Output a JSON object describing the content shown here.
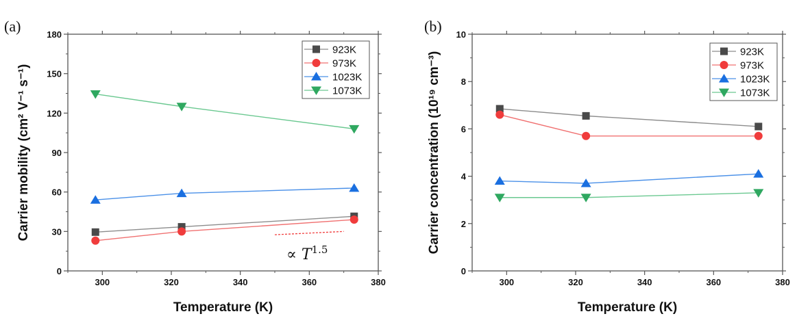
{
  "chart_data": [
    {
      "type": "line",
      "panel_label": "(a)",
      "title": "",
      "xlabel": "Temperature (K)",
      "ylabel": "Carrier mobility (cm² V⁻¹ s⁻¹)",
      "xlim": [
        290,
        380
      ],
      "ylim": [
        0,
        180
      ],
      "xticks": [
        300,
        320,
        340,
        360,
        380
      ],
      "yticks": [
        0,
        30,
        60,
        90,
        120,
        150,
        180
      ],
      "x": [
        298,
        323,
        373
      ],
      "legend_position": "top-right",
      "series": [
        {
          "name": "923K",
          "marker": "square",
          "color": "#4a4a4a",
          "line_color": "#8c8c8c",
          "values": [
            29.5,
            33.5,
            41.5
          ]
        },
        {
          "name": "973K",
          "marker": "circle",
          "color": "#f03c3c",
          "line_color": "#f07070",
          "values": [
            23,
            30,
            39
          ]
        },
        {
          "name": "1023K",
          "marker": "triangle-up",
          "color": "#1a6fe0",
          "line_color": "#4a90e8",
          "values": [
            54,
            59,
            63
          ]
        },
        {
          "name": "1073K",
          "marker": "triangle-down",
          "color": "#2fa860",
          "line_color": "#6ac890",
          "values": [
            134.5,
            125,
            108
          ]
        }
      ],
      "annotations": [
        {
          "text": "∝ T",
          "superscript": "1.5",
          "type": "reference-slope-dashed",
          "color": "#f03c3c",
          "from": [
            350,
            27.5
          ],
          "to": [
            370,
            30
          ]
        }
      ]
    },
    {
      "type": "line",
      "panel_label": "(b)",
      "title": "",
      "xlabel": "Temperature (K)",
      "ylabel": "Carrier concentration (10¹⁹ cm⁻³)",
      "xlim": [
        290,
        380
      ],
      "ylim": [
        0,
        10
      ],
      "xticks": [
        300,
        320,
        340,
        360,
        380
      ],
      "yticks": [
        0,
        2,
        4,
        6,
        8,
        10
      ],
      "x": [
        298,
        323,
        373
      ],
      "legend_position": "top-right",
      "series": [
        {
          "name": "923K",
          "marker": "square",
          "color": "#4a4a4a",
          "line_color": "#8c8c8c",
          "values": [
            6.85,
            6.55,
            6.1
          ]
        },
        {
          "name": "973K",
          "marker": "circle",
          "color": "#f03c3c",
          "line_color": "#f07070",
          "values": [
            6.6,
            5.7,
            5.7
          ]
        },
        {
          "name": "1023K",
          "marker": "triangle-up",
          "color": "#1a6fe0",
          "line_color": "#4a90e8",
          "values": [
            3.8,
            3.7,
            4.1
          ]
        },
        {
          "name": "1073K",
          "marker": "triangle-down",
          "color": "#2fa860",
          "line_color": "#6ac890",
          "values": [
            3.1,
            3.1,
            3.3
          ]
        }
      ]
    }
  ]
}
